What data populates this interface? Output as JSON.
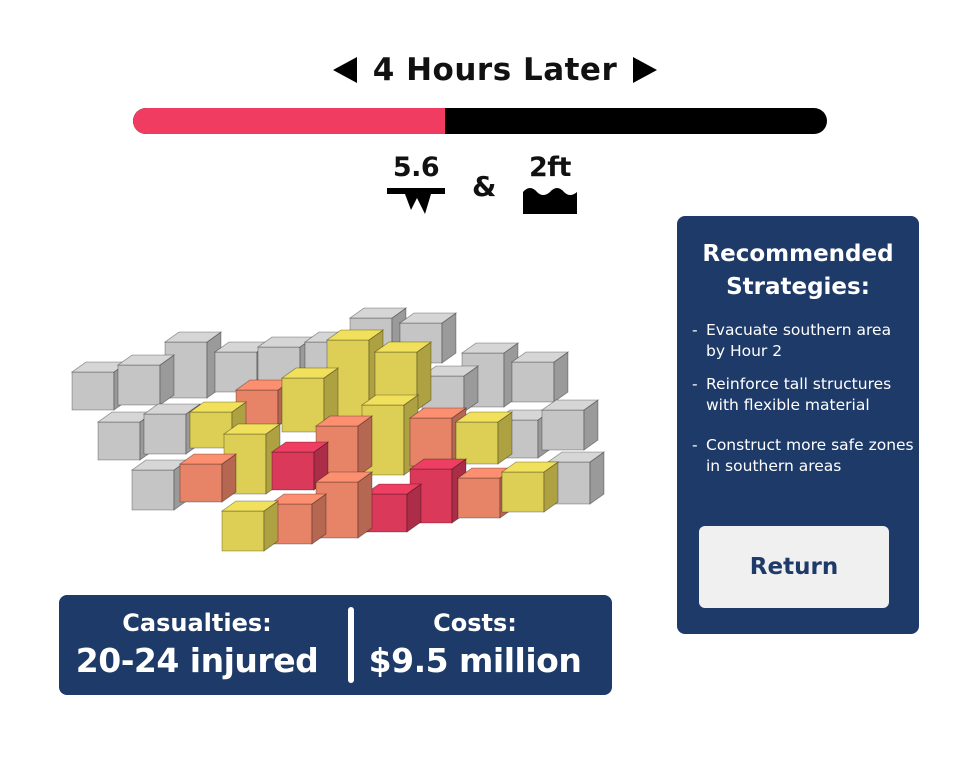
{
  "header": {
    "title": "4 Hours Later",
    "prev_icon": "triangle-left-icon",
    "next_icon": "triangle-right-icon"
  },
  "progress": {
    "fraction": 0.45,
    "fill_color": "#ef3c60",
    "track_color": "#000000"
  },
  "metrics": {
    "magnitude": "5.6",
    "magnitude_icon": "seismograph-icon",
    "connector": "&",
    "flood_depth": "2ft",
    "flood_icon": "water-wave-icon"
  },
  "damage_legend_colors": {
    "none": "#d6d6d6",
    "moderate": "#f0e05c",
    "severe": "#fb8f70",
    "critical": "#ee3e62"
  },
  "stats": {
    "casualties_label": "Casualties:",
    "casualties_value": "20-24 injured",
    "costs_label": "Costs:",
    "costs_value": "$9.5 million"
  },
  "strategies": {
    "title": "Recommended Strategies:",
    "items": [
      "Evacuate southern area by Hour 2",
      "Reinforce tall structures with flexible material",
      "Construct more safe zones in southern areas"
    ],
    "return_label": "Return"
  },
  "theme": {
    "panel_color": "#1e3a68"
  }
}
